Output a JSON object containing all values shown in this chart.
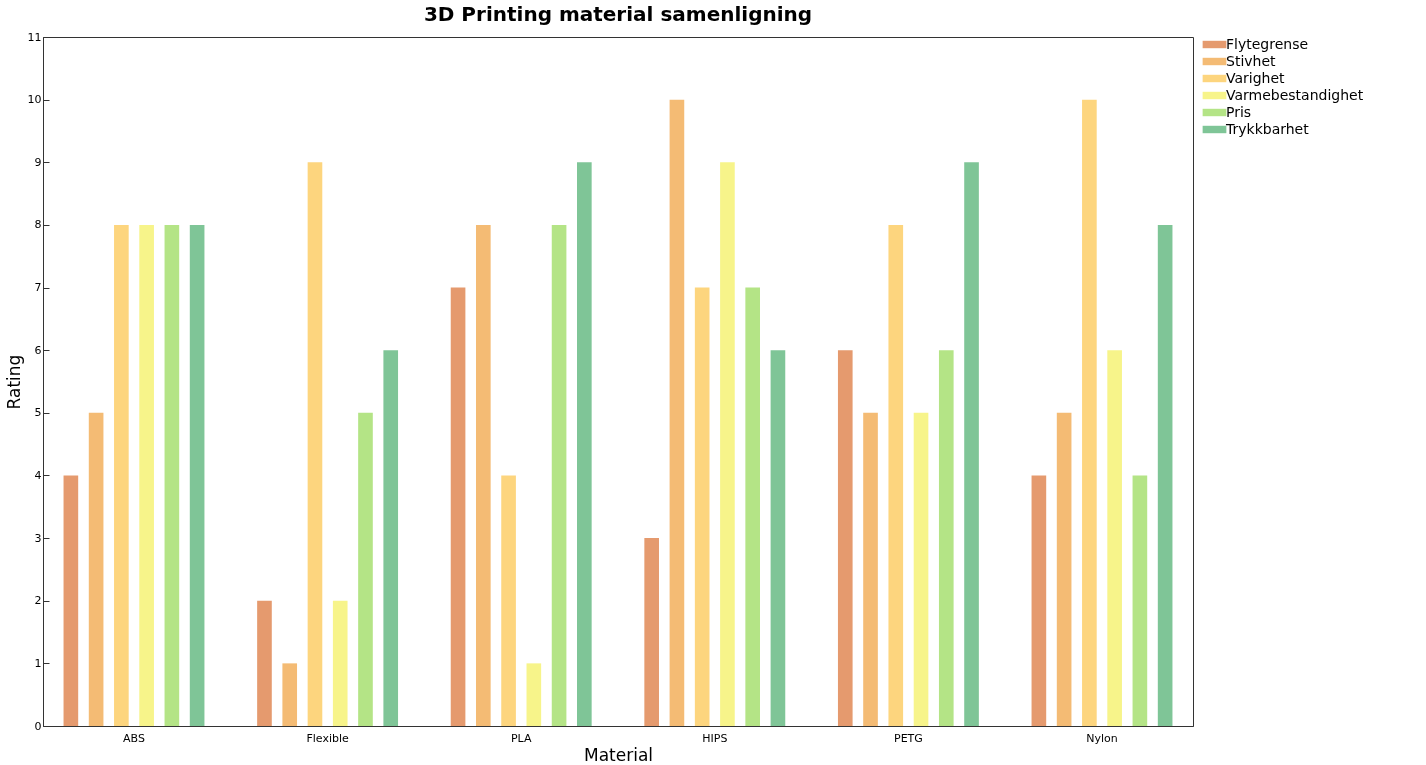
{
  "chart_data": {
    "type": "bar",
    "title": "3D Printing material samenligning",
    "xlabel": "Material",
    "ylabel": "Rating",
    "categories": [
      "ABS",
      "Flexible",
      "PLA",
      "HIPS",
      "PETG",
      "Nylon"
    ],
    "series": [
      {
        "name": "Flytegrense",
        "color": "#e59a6e",
        "values": [
          4,
          2,
          7,
          3,
          6,
          4
        ]
      },
      {
        "name": "Stivhet",
        "color": "#f4bb74",
        "values": [
          5,
          1,
          8,
          10,
          5,
          5
        ]
      },
      {
        "name": "Varighet",
        "color": "#fdd57e",
        "values": [
          8,
          9,
          4,
          7,
          8,
          10
        ]
      },
      {
        "name": "Varmebestandighet",
        "color": "#f7f48a",
        "values": [
          8,
          2,
          1,
          9,
          5,
          6
        ]
      },
      {
        "name": "Pris",
        "color": "#b4e486",
        "values": [
          8,
          5,
          8,
          7,
          6,
          4
        ]
      },
      {
        "name": "Trykkbarhet",
        "color": "#7fc597",
        "values": [
          8,
          6,
          9,
          6,
          9,
          8
        ]
      }
    ],
    "ylim": [
      0,
      11
    ],
    "yticks": [
      0,
      1,
      2,
      3,
      4,
      5,
      6,
      7,
      8,
      9,
      10,
      11
    ],
    "grid": false,
    "legend": "right"
  }
}
